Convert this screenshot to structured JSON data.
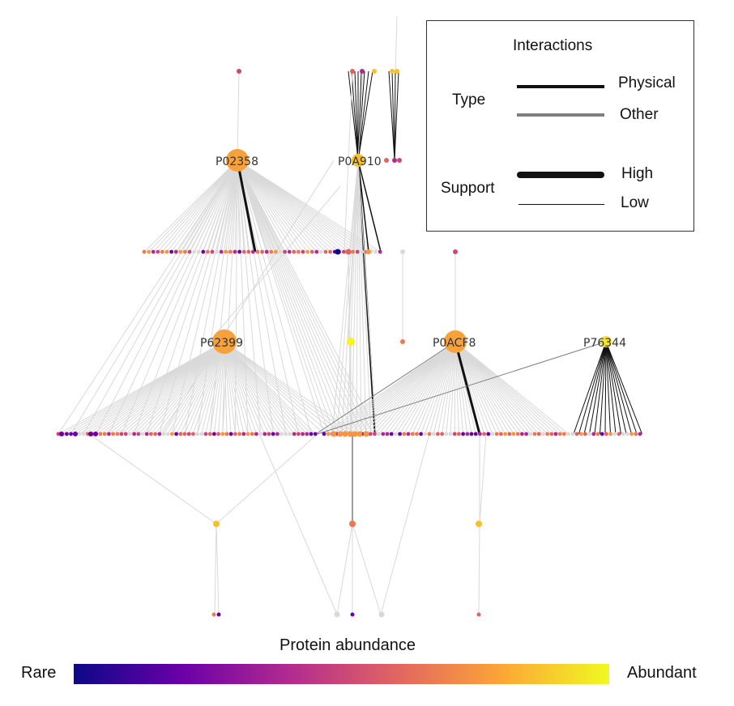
{
  "legend": {
    "title": "Interactions",
    "type_label": "Type",
    "physical_label": "Physical",
    "other_label": "Other",
    "support_label": "Support",
    "high_label": "High",
    "low_label": "Low",
    "physical_color": "#111111",
    "other_color": "#7f7f7f"
  },
  "colorbar": {
    "title": "Protein abundance",
    "low_label": "Rare",
    "high_label": "Abundant",
    "colors": [
      "#0d0887",
      "#6a00a8",
      "#b12a90",
      "#e16462",
      "#fca636",
      "#f0f921"
    ]
  },
  "hubs": [
    {
      "id": "P02358",
      "label": "P02358",
      "color": "#f7a13a"
    },
    {
      "id": "P0A910",
      "label": "P0A910",
      "color": "#fbbf2a"
    },
    {
      "id": "P62399",
      "label": "P62399",
      "color": "#f7a13a"
    },
    {
      "id": "P0ACF8",
      "label": "P0ACF8",
      "color": "#f7a13a"
    },
    {
      "id": "P76344",
      "label": "P76344",
      "color": "#f7e32a"
    }
  ],
  "edge_colors": {
    "default": "#d9d9d9",
    "physical": "#111111",
    "other": "#7f7f7f"
  }
}
